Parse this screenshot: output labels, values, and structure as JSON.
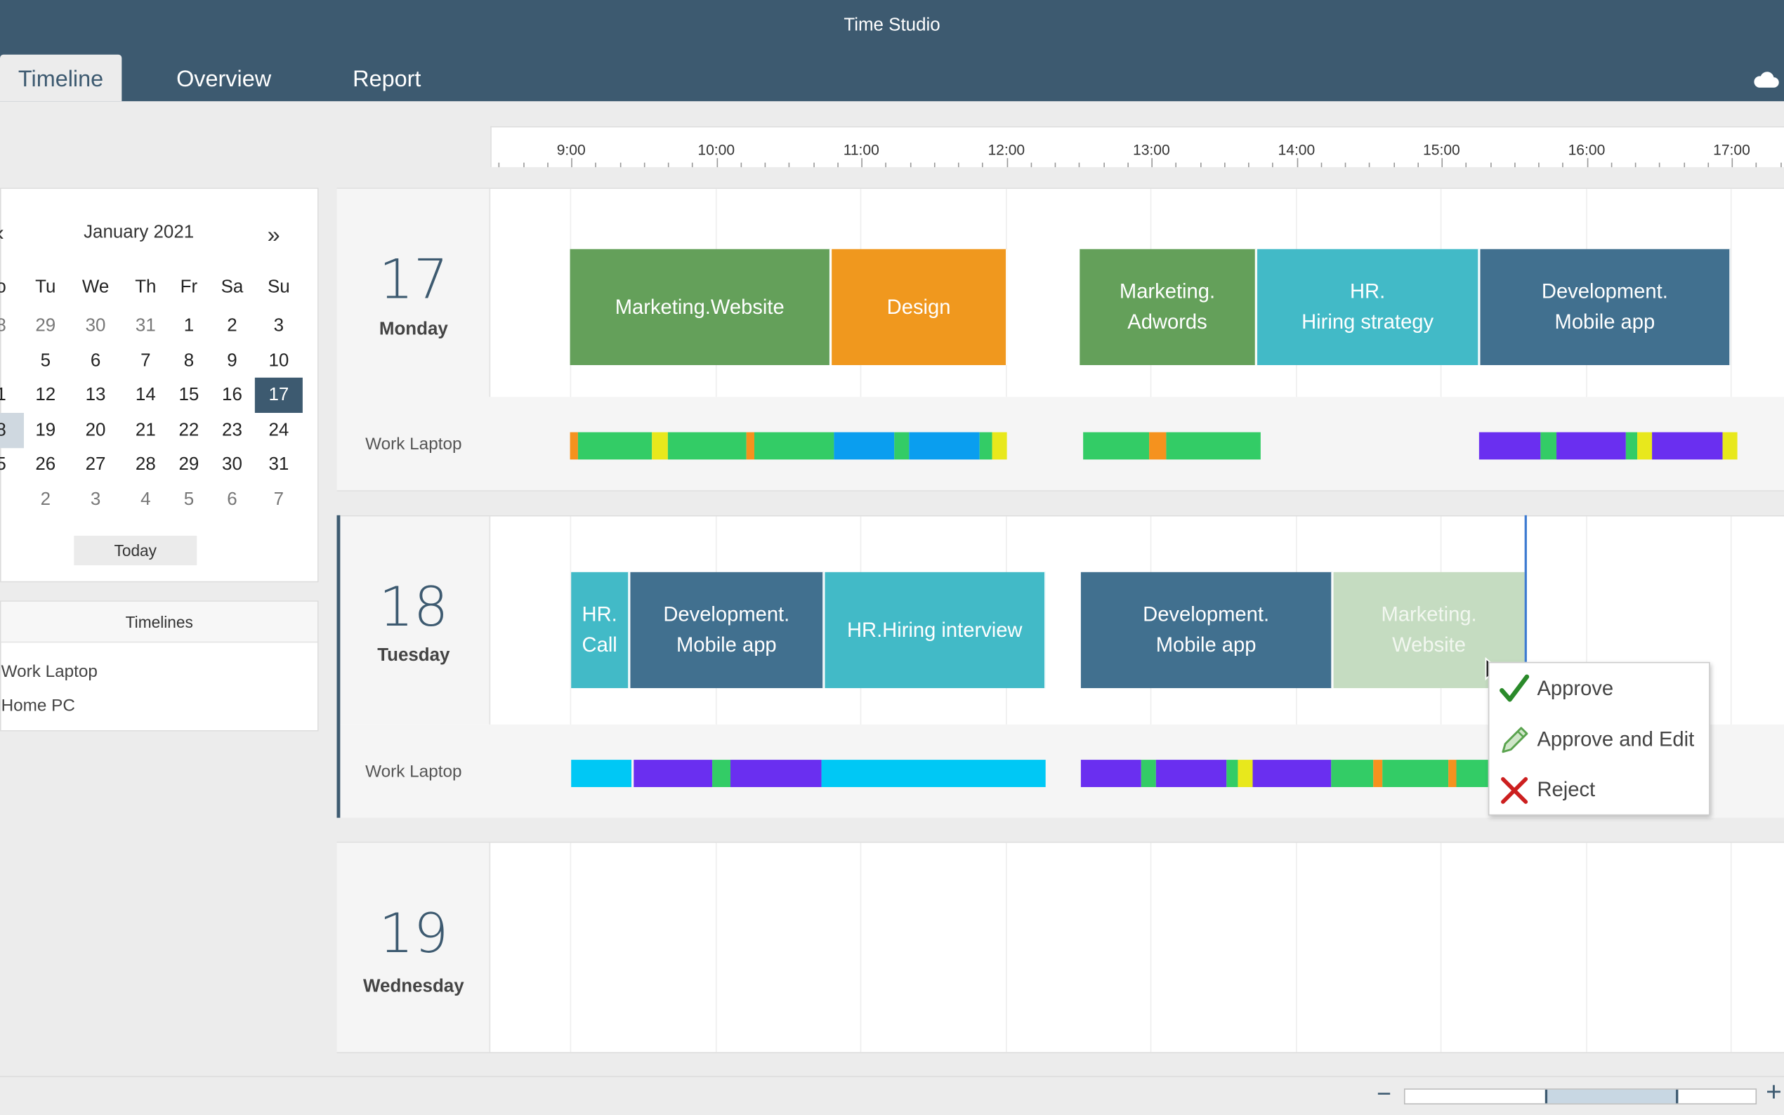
{
  "app": {
    "title": "Time Studio"
  },
  "tabs": [
    {
      "label": "Timeline",
      "active": true
    },
    {
      "label": "Overview",
      "active": false
    },
    {
      "label": "Report",
      "active": false
    }
  ],
  "calendar": {
    "month_label": "January 2021",
    "prev": "‹",
    "next": "»",
    "weekdays": [
      "o",
      "Tu",
      "We",
      "Th",
      "Fr",
      "Sa",
      "Su"
    ],
    "weeks": [
      [
        "8",
        "29",
        "30",
        "31",
        "1",
        "2",
        "3"
      ],
      [
        "",
        "5",
        "6",
        "7",
        "8",
        "9",
        "10"
      ],
      [
        "1",
        "12",
        "13",
        "14",
        "15",
        "16",
        "17"
      ],
      [
        "8",
        "19",
        "20",
        "21",
        "22",
        "23",
        "24"
      ],
      [
        "5",
        "26",
        "27",
        "28",
        "29",
        "30",
        "31"
      ],
      [
        "",
        "2",
        "3",
        "4",
        "5",
        "6",
        "7"
      ]
    ],
    "selected": "17",
    "today_label": "Today"
  },
  "timelines": {
    "header": "Timelines",
    "items": [
      "Work Laptop",
      "Home PC"
    ]
  },
  "ruler": {
    "hours": [
      "9:00",
      "10:00",
      "11:00",
      "12:00",
      "13:00",
      "14:00",
      "15:00",
      "16:00",
      "17:00"
    ]
  },
  "days": [
    {
      "number": "17",
      "name": "Monday",
      "device": "Work Laptop",
      "tasks": [
        {
          "label": "Marketing.Website",
          "color": "#64a05a"
        },
        {
          "label": "Design",
          "color": "#f0981e"
        },
        {
          "label": "Marketing.\nAdwords",
          "color": "#64a05a"
        },
        {
          "label": "HR.\nHiring strategy",
          "color": "#42bac7"
        },
        {
          "label": "Development.\nMobile app",
          "color": "#41708f"
        }
      ]
    },
    {
      "number": "18",
      "name": "Tuesday",
      "device": "Work Laptop",
      "tasks": [
        {
          "label": "HR.\nCall",
          "color": "#42bac7"
        },
        {
          "label": "Development.\nMobile app",
          "color": "#41708f"
        },
        {
          "label": "HR.Hiring interview",
          "color": "#42bac7"
        },
        {
          "label": "Development.\nMobile app",
          "color": "#41708f"
        },
        {
          "label": "Marketing.\nWebsite",
          "color": "#c5dcc1"
        }
      ]
    },
    {
      "number": "19",
      "name": "Wednesday",
      "device": "",
      "tasks": []
    }
  ],
  "context_menu": {
    "items": [
      {
        "label": "Approve",
        "icon": "checkmark-icon"
      },
      {
        "label": "Approve and Edit",
        "icon": "pencil-icon"
      },
      {
        "label": "Reject",
        "icon": "cross-icon"
      }
    ]
  },
  "zoom": {
    "minus": "−",
    "plus": "+"
  },
  "colors": {
    "header": "#3d5a70",
    "green_task": "#64a05a",
    "orange_task": "#f0981e",
    "teal_task": "#42bac7",
    "blue_task": "#41708f",
    "act_green": "#33cc66",
    "act_orange": "#f5921e",
    "act_yellow": "#e8e81c",
    "act_blue": "#0a9eef",
    "act_purple": "#6a2ff0",
    "act_cyan": "#00c8f5"
  }
}
